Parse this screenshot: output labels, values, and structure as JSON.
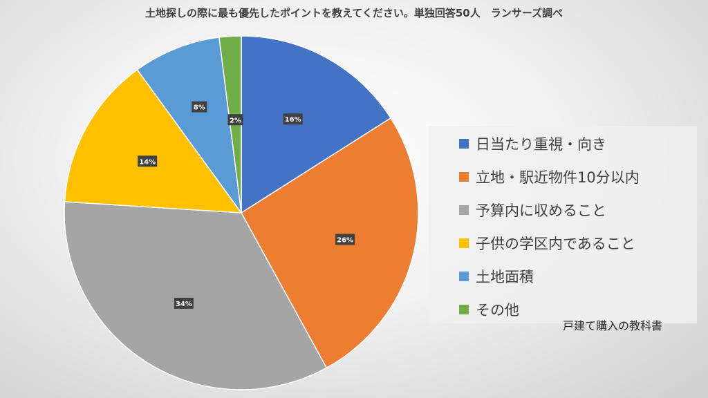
{
  "chart_data": {
    "type": "pie",
    "title": "土地探しの際に最も優先したポイントを教えてください。単独回答50人　ランサーズ調べ",
    "categories": [
      "日当たり重視・向き",
      "立地・駅近物件10分以内",
      "予算内に収めること",
      "子供の学区内であること",
      "土地面積",
      "その他"
    ],
    "values": [
      16,
      26,
      34,
      14,
      8,
      2
    ],
    "value_labels": [
      "16%",
      "26%",
      "34%",
      "14%",
      "8%",
      "2%"
    ],
    "colors": [
      "#4472C4",
      "#ED7D31",
      "#A5A5A5",
      "#FFC000",
      "#5B9BD5",
      "#70AD47"
    ],
    "legend_position": "right",
    "start_angle_deg": 0,
    "direction": "clockwise"
  },
  "source_note": "戸建て購入の教科書"
}
